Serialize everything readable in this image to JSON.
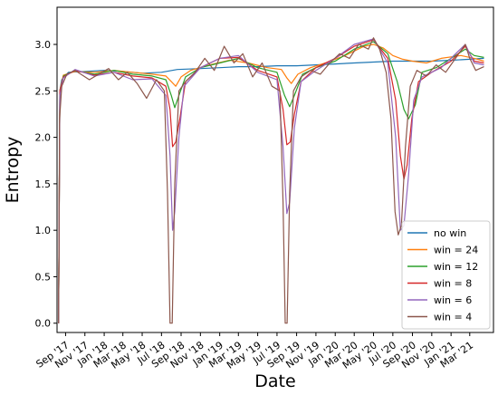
{
  "chart_data": {
    "type": "line",
    "title": "",
    "xlabel": "Date",
    "ylabel": "Entropy",
    "ylim": [
      -0.1,
      3.4
    ],
    "xlim": [
      "2017-08-05",
      "2021-05-15"
    ],
    "grid": false,
    "legend_position": "lower right",
    "x_ticks": [
      {
        "date": "2017-09-01",
        "label": "Sep '17"
      },
      {
        "date": "2017-11-01",
        "label": "Nov '17"
      },
      {
        "date": "2018-01-01",
        "label": "Jan '18"
      },
      {
        "date": "2018-03-01",
        "label": "Mar '18"
      },
      {
        "date": "2018-05-01",
        "label": "May '18"
      },
      {
        "date": "2018-07-01",
        "label": "Jul '18"
      },
      {
        "date": "2018-09-01",
        "label": "Sep '18"
      },
      {
        "date": "2018-11-01",
        "label": "Nov '18"
      },
      {
        "date": "2019-01-01",
        "label": "Jan '19"
      },
      {
        "date": "2019-03-01",
        "label": "Mar '19"
      },
      {
        "date": "2019-05-01",
        "label": "May '19"
      },
      {
        "date": "2019-07-01",
        "label": "Jul '19"
      },
      {
        "date": "2019-09-01",
        "label": "Sep '19"
      },
      {
        "date": "2019-11-01",
        "label": "Nov '19"
      },
      {
        "date": "2020-01-01",
        "label": "Jan '20"
      },
      {
        "date": "2020-03-01",
        "label": "Mar '20"
      },
      {
        "date": "2020-05-01",
        "label": "May '20"
      },
      {
        "date": "2020-07-01",
        "label": "Jul '20"
      },
      {
        "date": "2020-09-01",
        "label": "Sep '20"
      },
      {
        "date": "2020-11-01",
        "label": "Nov '20"
      },
      {
        "date": "2021-01-01",
        "label": "Jan '21"
      },
      {
        "date": "2021-03-01",
        "label": "Mar '21"
      }
    ],
    "y_ticks": [
      {
        "value": 0.0,
        "label": "0.0"
      },
      {
        "value": 0.5,
        "label": "0.5"
      },
      {
        "value": 1.0,
        "label": "1.0"
      },
      {
        "value": 1.5,
        "label": "1.5"
      },
      {
        "value": 2.0,
        "label": "2.0"
      },
      {
        "value": 2.5,
        "label": "2.5"
      },
      {
        "value": 3.0,
        "label": "3.0"
      }
    ],
    "series": [
      {
        "name": "no win",
        "color": "#1f77b4",
        "points": [
          [
            "2017-08-10",
            0.0
          ],
          [
            "2017-08-14",
            2.5
          ],
          [
            "2017-08-20",
            2.62
          ],
          [
            "2017-09-10",
            2.7
          ],
          [
            "2017-11-01",
            2.71
          ],
          [
            "2018-01-01",
            2.72
          ],
          [
            "2018-03-01",
            2.71
          ],
          [
            "2018-05-01",
            2.69
          ],
          [
            "2018-07-01",
            2.7
          ],
          [
            "2018-08-20",
            2.73
          ],
          [
            "2018-11-01",
            2.74
          ],
          [
            "2019-01-01",
            2.75
          ],
          [
            "2019-03-01",
            2.76
          ],
          [
            "2019-05-01",
            2.76
          ],
          [
            "2019-07-01",
            2.77
          ],
          [
            "2019-09-01",
            2.77
          ],
          [
            "2019-11-01",
            2.78
          ],
          [
            "2020-01-01",
            2.79
          ],
          [
            "2020-03-01",
            2.8
          ],
          [
            "2020-05-01",
            2.81
          ],
          [
            "2020-07-01",
            2.82
          ],
          [
            "2020-09-01",
            2.82
          ],
          [
            "2020-11-01",
            2.82
          ],
          [
            "2021-01-01",
            2.83
          ],
          [
            "2021-03-01",
            2.84
          ],
          [
            "2021-04-15",
            2.85
          ]
        ]
      },
      {
        "name": "win = 24",
        "color": "#ff7f0e",
        "points": [
          [
            "2017-08-10",
            0.0
          ],
          [
            "2017-08-14",
            2.5
          ],
          [
            "2017-08-25",
            2.67
          ],
          [
            "2017-10-01",
            2.71
          ],
          [
            "2017-12-01",
            2.7
          ],
          [
            "2018-02-01",
            2.72
          ],
          [
            "2018-04-01",
            2.7
          ],
          [
            "2018-06-01",
            2.68
          ],
          [
            "2018-07-15",
            2.66
          ],
          [
            "2018-08-01",
            2.6
          ],
          [
            "2018-08-15",
            2.55
          ],
          [
            "2018-09-01",
            2.65
          ],
          [
            "2018-10-01",
            2.72
          ],
          [
            "2018-12-01",
            2.78
          ],
          [
            "2019-02-01",
            2.83
          ],
          [
            "2019-04-01",
            2.8
          ],
          [
            "2019-06-01",
            2.75
          ],
          [
            "2019-07-15",
            2.73
          ],
          [
            "2019-08-01",
            2.64
          ],
          [
            "2019-08-15",
            2.58
          ],
          [
            "2019-09-05",
            2.68
          ],
          [
            "2019-10-15",
            2.75
          ],
          [
            "2019-12-01",
            2.8
          ],
          [
            "2020-02-01",
            2.88
          ],
          [
            "2020-04-01",
            2.98
          ],
          [
            "2020-05-01",
            3.0
          ],
          [
            "2020-06-01",
            2.96
          ],
          [
            "2020-07-01",
            2.88
          ],
          [
            "2020-08-01",
            2.84
          ],
          [
            "2020-09-01",
            2.82
          ],
          [
            "2020-10-15",
            2.8
          ],
          [
            "2020-12-01",
            2.85
          ],
          [
            "2021-02-01",
            2.88
          ],
          [
            "2021-03-15",
            2.85
          ],
          [
            "2021-04-15",
            2.82
          ]
        ]
      },
      {
        "name": "win = 12",
        "color": "#2ca02c",
        "points": [
          [
            "2017-08-10",
            0.0
          ],
          [
            "2017-08-14",
            2.5
          ],
          [
            "2017-08-25",
            2.66
          ],
          [
            "2017-10-01",
            2.72
          ],
          [
            "2017-12-01",
            2.68
          ],
          [
            "2018-02-01",
            2.72
          ],
          [
            "2018-04-01",
            2.68
          ],
          [
            "2018-06-01",
            2.66
          ],
          [
            "2018-07-15",
            2.62
          ],
          [
            "2018-08-01",
            2.45
          ],
          [
            "2018-08-12",
            2.32
          ],
          [
            "2018-08-25",
            2.45
          ],
          [
            "2018-09-15",
            2.65
          ],
          [
            "2018-11-01",
            2.75
          ],
          [
            "2019-01-01",
            2.8
          ],
          [
            "2019-03-01",
            2.85
          ],
          [
            "2019-05-01",
            2.75
          ],
          [
            "2019-07-01",
            2.7
          ],
          [
            "2019-07-25",
            2.45
          ],
          [
            "2019-08-10",
            2.33
          ],
          [
            "2019-08-25",
            2.45
          ],
          [
            "2019-09-20",
            2.68
          ],
          [
            "2019-11-01",
            2.75
          ],
          [
            "2020-01-01",
            2.82
          ],
          [
            "2020-03-01",
            2.95
          ],
          [
            "2020-05-01",
            3.03
          ],
          [
            "2020-06-15",
            2.9
          ],
          [
            "2020-07-15",
            2.6
          ],
          [
            "2020-08-05",
            2.3
          ],
          [
            "2020-08-20",
            2.2
          ],
          [
            "2020-09-10",
            2.35
          ],
          [
            "2020-10-01",
            2.7
          ],
          [
            "2020-11-15",
            2.75
          ],
          [
            "2021-01-01",
            2.85
          ],
          [
            "2021-02-15",
            2.95
          ],
          [
            "2021-03-15",
            2.88
          ],
          [
            "2021-04-15",
            2.86
          ]
        ]
      },
      {
        "name": "win = 8",
        "color": "#d62728",
        "points": [
          [
            "2017-08-10",
            0.0
          ],
          [
            "2017-08-14",
            2.5
          ],
          [
            "2017-08-25",
            2.65
          ],
          [
            "2017-10-01",
            2.72
          ],
          [
            "2017-12-01",
            2.67
          ],
          [
            "2018-02-01",
            2.7
          ],
          [
            "2018-04-01",
            2.66
          ],
          [
            "2018-06-01",
            2.64
          ],
          [
            "2018-07-15",
            2.55
          ],
          [
            "2018-07-28",
            2.3
          ],
          [
            "2018-08-05",
            1.9
          ],
          [
            "2018-08-15",
            1.95
          ],
          [
            "2018-08-28",
            2.2
          ],
          [
            "2018-09-15",
            2.6
          ],
          [
            "2018-11-01",
            2.75
          ],
          [
            "2019-01-01",
            2.85
          ],
          [
            "2019-03-01",
            2.86
          ],
          [
            "2019-05-01",
            2.72
          ],
          [
            "2019-07-01",
            2.65
          ],
          [
            "2019-07-20",
            2.3
          ],
          [
            "2019-08-01",
            1.92
          ],
          [
            "2019-08-12",
            1.95
          ],
          [
            "2019-08-25",
            2.25
          ],
          [
            "2019-09-15",
            2.6
          ],
          [
            "2019-11-01",
            2.75
          ],
          [
            "2020-01-01",
            2.85
          ],
          [
            "2020-03-01",
            2.98
          ],
          [
            "2020-05-01",
            3.05
          ],
          [
            "2020-06-15",
            2.85
          ],
          [
            "2020-07-10",
            2.4
          ],
          [
            "2020-07-25",
            1.8
          ],
          [
            "2020-08-05",
            1.55
          ],
          [
            "2020-08-15",
            1.7
          ],
          [
            "2020-08-30",
            2.2
          ],
          [
            "2020-09-20",
            2.6
          ],
          [
            "2020-11-01",
            2.7
          ],
          [
            "2021-01-01",
            2.82
          ],
          [
            "2021-02-15",
            2.98
          ],
          [
            "2021-03-15",
            2.82
          ],
          [
            "2021-04-15",
            2.8
          ]
        ]
      },
      {
        "name": "win = 6",
        "color": "#9467bd",
        "points": [
          [
            "2017-08-10",
            0.0
          ],
          [
            "2017-08-14",
            2.45
          ],
          [
            "2017-08-25",
            2.64
          ],
          [
            "2017-10-01",
            2.73
          ],
          [
            "2017-12-01",
            2.66
          ],
          [
            "2018-02-01",
            2.7
          ],
          [
            "2018-04-01",
            2.62
          ],
          [
            "2018-06-01",
            2.63
          ],
          [
            "2018-07-15",
            2.45
          ],
          [
            "2018-07-28",
            1.8
          ],
          [
            "2018-08-05",
            1.0
          ],
          [
            "2018-08-12",
            1.2
          ],
          [
            "2018-08-25",
            2.0
          ],
          [
            "2018-09-10",
            2.55
          ],
          [
            "2018-11-01",
            2.75
          ],
          [
            "2019-01-01",
            2.85
          ],
          [
            "2019-03-01",
            2.88
          ],
          [
            "2019-05-01",
            2.7
          ],
          [
            "2019-07-01",
            2.62
          ],
          [
            "2019-07-20",
            1.9
          ],
          [
            "2019-08-01",
            1.18
          ],
          [
            "2019-08-10",
            1.3
          ],
          [
            "2019-08-25",
            2.1
          ],
          [
            "2019-09-15",
            2.6
          ],
          [
            "2019-11-01",
            2.72
          ],
          [
            "2020-01-01",
            2.85
          ],
          [
            "2020-03-01",
            3.0
          ],
          [
            "2020-05-01",
            3.06
          ],
          [
            "2020-06-15",
            2.8
          ],
          [
            "2020-07-10",
            2.0
          ],
          [
            "2020-07-25",
            1.0
          ],
          [
            "2020-08-05",
            1.05
          ],
          [
            "2020-08-20",
            1.6
          ],
          [
            "2020-09-05",
            2.4
          ],
          [
            "2020-10-01",
            2.65
          ],
          [
            "2020-12-01",
            2.75
          ],
          [
            "2021-02-15",
            3.0
          ],
          [
            "2021-03-15",
            2.8
          ],
          [
            "2021-04-15",
            2.78
          ]
        ]
      },
      {
        "name": "win = 4",
        "color": "#8c564b",
        "points": [
          [
            "2017-08-10",
            0.0
          ],
          [
            "2017-08-13",
            2.2
          ],
          [
            "2017-08-20",
            2.55
          ],
          [
            "2017-09-05",
            2.68
          ],
          [
            "2017-10-01",
            2.72
          ],
          [
            "2017-11-15",
            2.62
          ],
          [
            "2017-12-15",
            2.68
          ],
          [
            "2018-01-15",
            2.74
          ],
          [
            "2018-02-15",
            2.62
          ],
          [
            "2018-03-15",
            2.7
          ],
          [
            "2018-04-15",
            2.58
          ],
          [
            "2018-05-15",
            2.42
          ],
          [
            "2018-06-15",
            2.62
          ],
          [
            "2018-07-10",
            2.5
          ],
          [
            "2018-07-20",
            1.4
          ],
          [
            "2018-07-28",
            0.0
          ],
          [
            "2018-08-04",
            0.0
          ],
          [
            "2018-08-12",
            1.5
          ],
          [
            "2018-08-25",
            2.5
          ],
          [
            "2018-09-15",
            2.6
          ],
          [
            "2018-10-15",
            2.7
          ],
          [
            "2018-11-15",
            2.85
          ],
          [
            "2018-12-15",
            2.72
          ],
          [
            "2019-01-15",
            2.98
          ],
          [
            "2019-02-15",
            2.8
          ],
          [
            "2019-03-15",
            2.9
          ],
          [
            "2019-04-15",
            2.65
          ],
          [
            "2019-05-15",
            2.8
          ],
          [
            "2019-06-15",
            2.55
          ],
          [
            "2019-07-10",
            2.5
          ],
          [
            "2019-07-20",
            1.3
          ],
          [
            "2019-07-27",
            0.0
          ],
          [
            "2019-08-02",
            0.0
          ],
          [
            "2019-08-10",
            1.4
          ],
          [
            "2019-08-22",
            2.5
          ],
          [
            "2019-09-15",
            2.65
          ],
          [
            "2019-10-15",
            2.72
          ],
          [
            "2019-11-15",
            2.68
          ],
          [
            "2019-12-15",
            2.8
          ],
          [
            "2020-01-15",
            2.9
          ],
          [
            "2020-02-15",
            2.85
          ],
          [
            "2020-03-15",
            3.0
          ],
          [
            "2020-04-15",
            2.95
          ],
          [
            "2020-05-01",
            3.07
          ],
          [
            "2020-05-20",
            2.95
          ],
          [
            "2020-06-10",
            2.7
          ],
          [
            "2020-06-25",
            2.2
          ],
          [
            "2020-07-08",
            1.2
          ],
          [
            "2020-07-18",
            0.95
          ],
          [
            "2020-07-28",
            1.05
          ],
          [
            "2020-08-10",
            1.9
          ],
          [
            "2020-08-25",
            2.55
          ],
          [
            "2020-09-15",
            2.72
          ],
          [
            "2020-10-15",
            2.66
          ],
          [
            "2020-11-15",
            2.78
          ],
          [
            "2020-12-15",
            2.7
          ],
          [
            "2021-01-15",
            2.85
          ],
          [
            "2021-02-15",
            3.0
          ],
          [
            "2021-03-01",
            2.85
          ],
          [
            "2021-03-20",
            2.72
          ],
          [
            "2021-04-15",
            2.76
          ]
        ]
      }
    ]
  }
}
